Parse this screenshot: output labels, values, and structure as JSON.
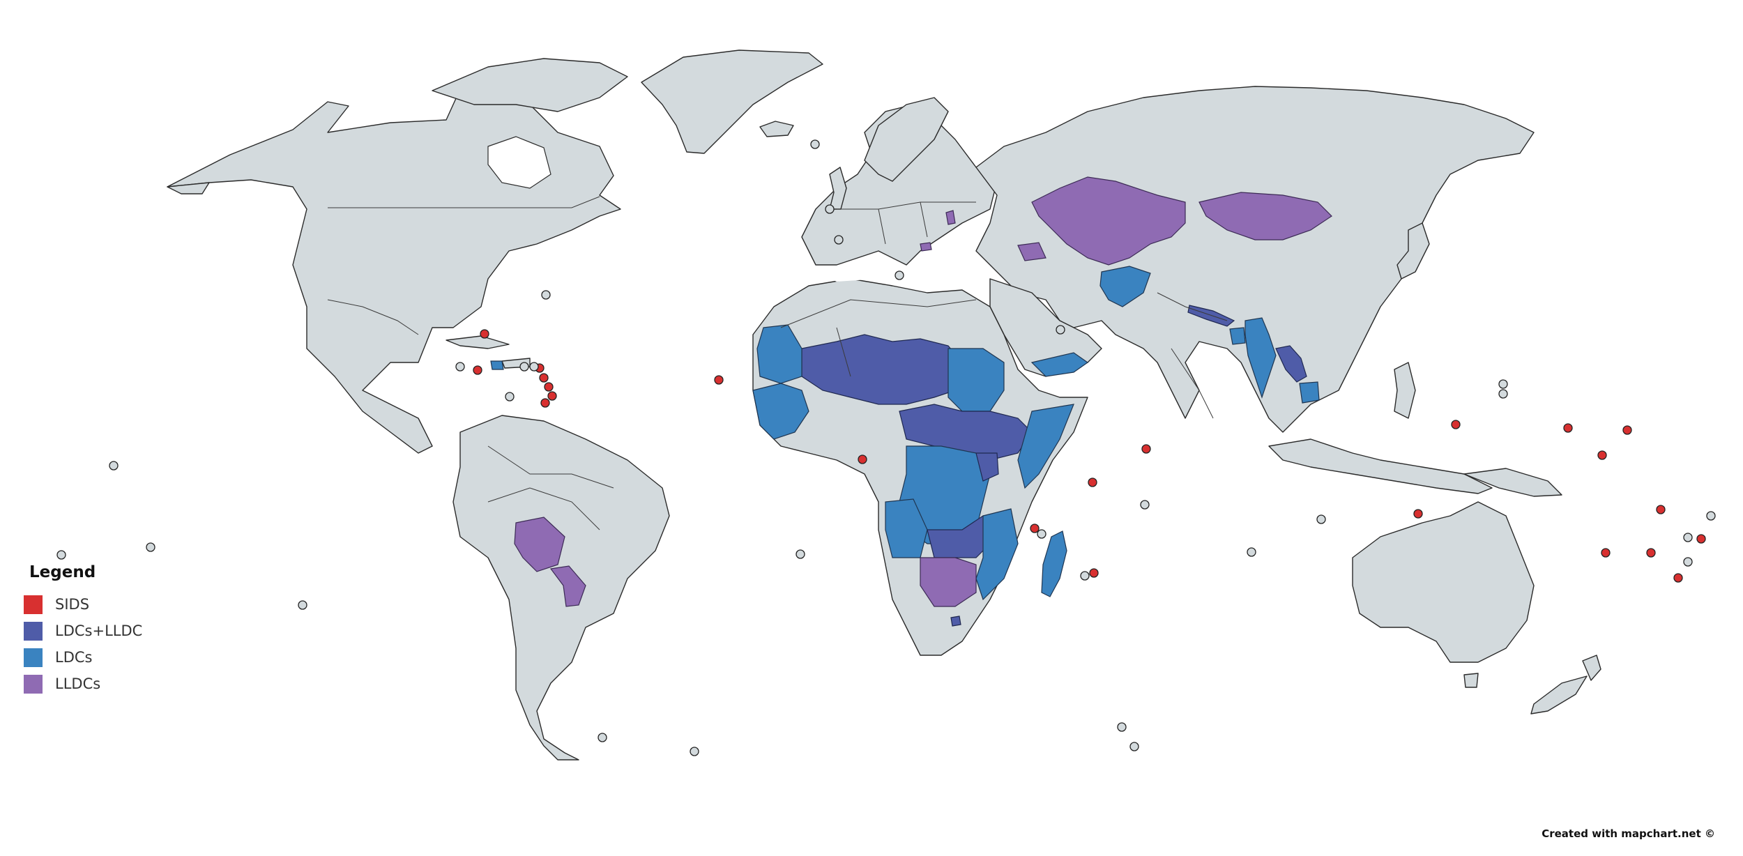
{
  "legend": {
    "title": "Legend",
    "items": [
      {
        "label": "SIDS",
        "color": "#d83030"
      },
      {
        "label": "LDCs+LLDC",
        "color": "#4f5ca8"
      },
      {
        "label": "LDCs",
        "color": "#3a83c0"
      },
      {
        "label": "LLDCs",
        "color": "#8f6bb3"
      }
    ]
  },
  "credit": "Created with mapchart.net ©",
  "colors": {
    "land": "#d3dadd",
    "border": "#2a2a2a",
    "background": "#ffffff"
  }
}
